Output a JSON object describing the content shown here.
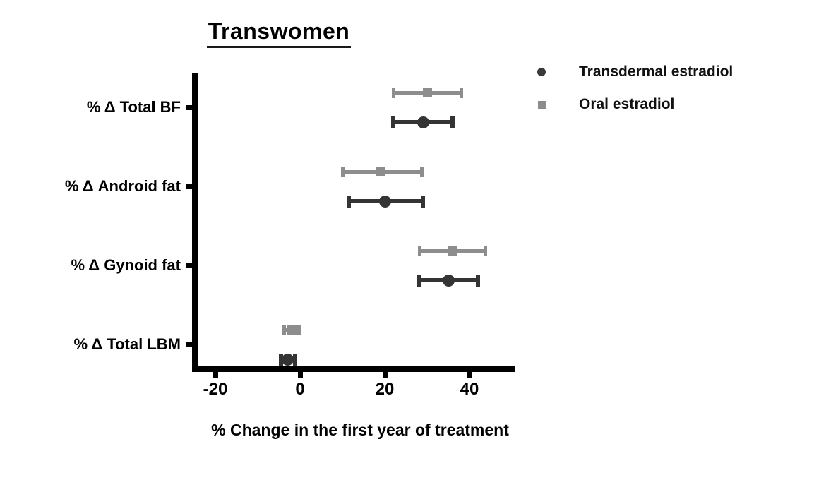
{
  "title": "Transwomen",
  "chart_data": {
    "type": "scatter",
    "subtype": "horizontal-dot-error-bar",
    "title": "Transwomen",
    "xlabel": "% Change in the first year of treatment",
    "ylabel": "",
    "categories": [
      "% Δ Total BF",
      "% Δ Android fat",
      "% Δ Gynoid fat",
      "% Δ Total LBM"
    ],
    "x_ticks": [
      "-20",
      "0",
      "20",
      "40"
    ],
    "x_tick_values": [
      -20,
      0,
      20,
      40
    ],
    "xlim": [
      -26,
      51
    ],
    "grid": false,
    "legend_position": "top-right",
    "series": [
      {
        "name": "Transdermal estradiol",
        "marker": "circle",
        "color": "#343434",
        "points": [
          {
            "category": "% Δ Total BF",
            "value": 29,
            "low": 22,
            "high": 36
          },
          {
            "category": "% Δ Android fat",
            "value": 20,
            "low": 11.5,
            "high": 29
          },
          {
            "category": "% Δ Gynoid fat",
            "value": 35,
            "low": 28,
            "high": 42
          },
          {
            "category": "% Δ Total LBM",
            "value": -3,
            "low": -4.5,
            "high": -1.2
          }
        ]
      },
      {
        "name": "Oral estradiol",
        "marker": "square",
        "color": "#8d8d8d",
        "points": [
          {
            "category": "% Δ Total BF",
            "value": 30,
            "low": 22,
            "high": 38
          },
          {
            "category": "% Δ Android fat",
            "value": 19,
            "low": 10,
            "high": 28.7
          },
          {
            "category": "% Δ Gynoid fat",
            "value": 36,
            "low": 28.3,
            "high": 43.8
          },
          {
            "category": "% Δ Total LBM",
            "value": -2,
            "low": -3.7,
            "high": -0.3
          }
        ]
      }
    ]
  }
}
